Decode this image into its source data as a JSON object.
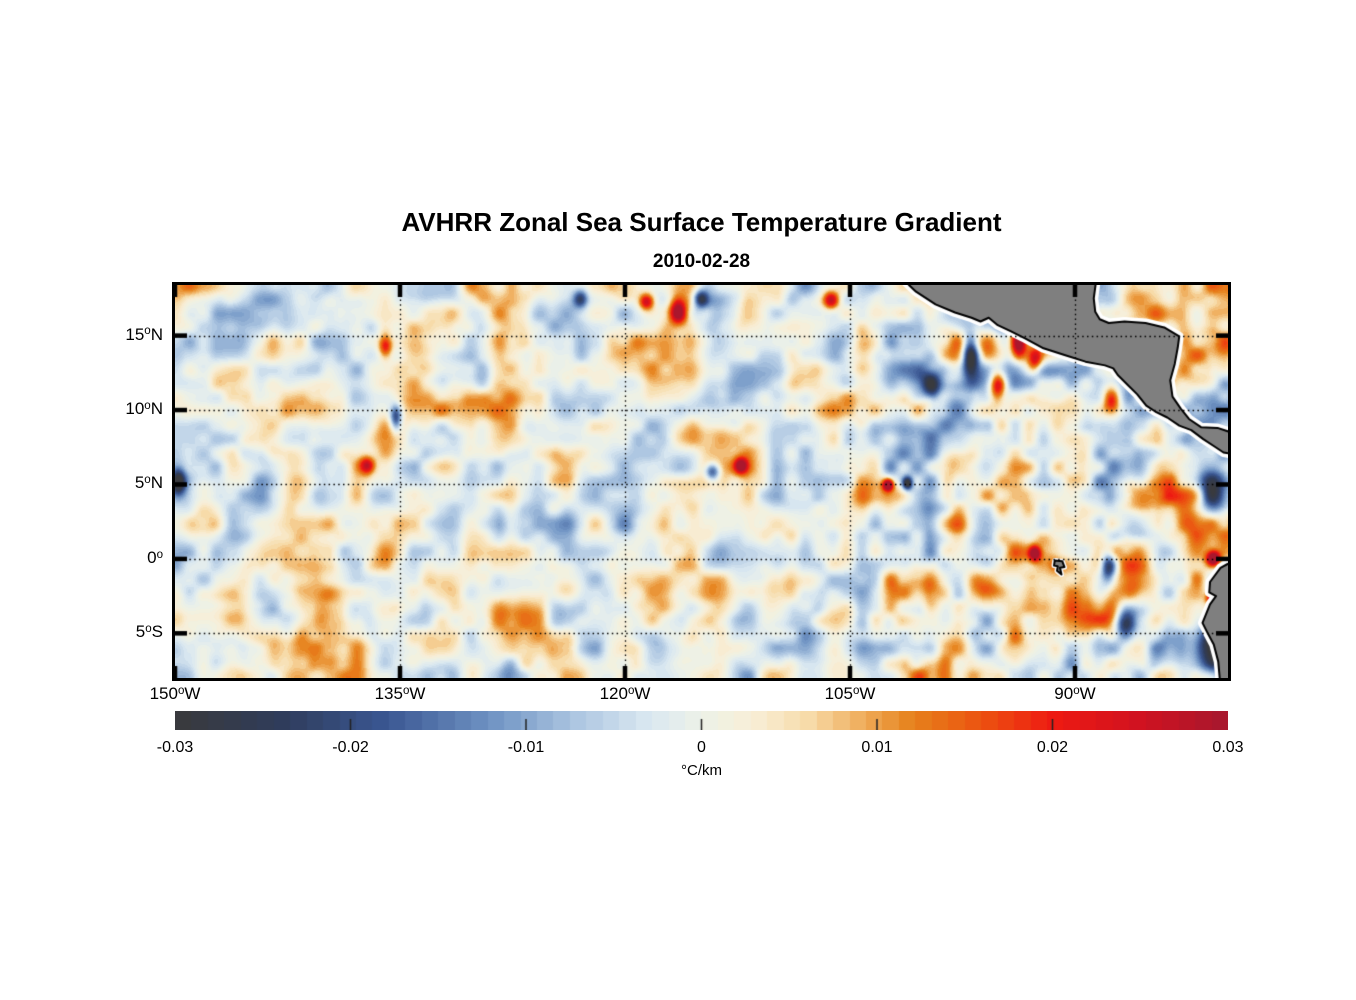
{
  "figure": {
    "title": "AVHRR Zonal Sea Surface Temperature Gradient",
    "subtitle": "2010-02-28"
  },
  "chart_data": {
    "type": "heatmap",
    "title": "AVHRR Zonal Sea Surface Temperature Gradient",
    "date": "2010-02-28",
    "variable": "zonal sea surface temperature gradient",
    "units": "°C/km",
    "extent": {
      "lon_min": -150.0,
      "lon_max": -79.8,
      "lat_min": -8.0,
      "lat_max": 18.4
    },
    "x_ticks": [
      {
        "text": "150",
        "sup": "o",
        "suffix": "W",
        "lon": -150
      },
      {
        "text": "135",
        "sup": "o",
        "suffix": "W",
        "lon": -135
      },
      {
        "text": "120",
        "sup": "o",
        "suffix": "W",
        "lon": -120
      },
      {
        "text": "105",
        "sup": "o",
        "suffix": "W",
        "lon": -105
      },
      {
        "text": "90",
        "sup": "o",
        "suffix": "W",
        "lon": -90
      }
    ],
    "y_ticks": [
      {
        "text": "15",
        "sup": "o",
        "suffix": "N",
        "lat": 15
      },
      {
        "text": "10",
        "sup": "o",
        "suffix": "N",
        "lat": 10
      },
      {
        "text": "5",
        "sup": "o",
        "suffix": "N",
        "lat": 5
      },
      {
        "text": "0",
        "sup": "o",
        "suffix": "",
        "lat": 0
      },
      {
        "text": "5",
        "sup": "o",
        "suffix": "S",
        "lat": -5
      }
    ],
    "grid": {
      "style": "dotted",
      "color": "#000000",
      "on": true
    },
    "colorbar": {
      "min": -0.03,
      "max": 0.03,
      "tick_values": [
        -0.03,
        -0.02,
        -0.01,
        0,
        0.01,
        0.02,
        0.03
      ],
      "tick_labels": [
        "-0.03",
        "-0.02",
        "-0.01",
        "0",
        "0.01",
        "0.02",
        "0.03"
      ],
      "label": "°C/km",
      "orientation": "horizontal",
      "levels": 64
    },
    "colormap_stops": [
      [
        -0.03,
        "#3a3a3c"
      ],
      [
        -0.024,
        "#2f3c5a"
      ],
      [
        -0.018,
        "#3a5692"
      ],
      [
        -0.012,
        "#6f93c3"
      ],
      [
        -0.007,
        "#aec7e2"
      ],
      [
        -0.003,
        "#dae8f1"
      ],
      [
        -0.0008,
        "#e8efeb"
      ],
      [
        0.0008,
        "#f0f2e3"
      ],
      [
        0.003,
        "#f8eed6"
      ],
      [
        0.006,
        "#f7dcab"
      ],
      [
        0.009,
        "#f0b060"
      ],
      [
        0.012,
        "#e6821c"
      ],
      [
        0.016,
        "#ec5210"
      ],
      [
        0.02,
        "#ee1a12"
      ],
      [
        0.025,
        "#d01220"
      ],
      [
        0.03,
        "#a6182e"
      ]
    ],
    "land_color": "#7f7f7f",
    "coast_outline_color": "#000000",
    "coast_halo_color": "#ffffff",
    "geography": {
      "mainland_central_america": [
        [
          -101.7,
          19.0
        ],
        [
          -100.6,
          17.95
        ],
        [
          -99.3,
          17.1
        ],
        [
          -98.0,
          16.55
        ],
        [
          -96.9,
          16.2
        ],
        [
          -96.3,
          15.95
        ],
        [
          -95.75,
          16.2
        ],
        [
          -95.15,
          15.7
        ],
        [
          -94.3,
          15.3
        ],
        [
          -93.3,
          14.8
        ],
        [
          -92.1,
          14.15
        ],
        [
          -90.7,
          13.7
        ],
        [
          -89.3,
          13.25
        ],
        [
          -88.0,
          13.0
        ],
        [
          -87.45,
          12.8
        ],
        [
          -87.15,
          12.35
        ],
        [
          -86.5,
          11.7
        ],
        [
          -85.85,
          11.05
        ],
        [
          -85.25,
          10.3
        ],
        [
          -84.65,
          9.9
        ],
        [
          -83.85,
          9.5
        ],
        [
          -83.05,
          8.95
        ],
        [
          -82.25,
          8.65
        ],
        [
          -81.45,
          8.05
        ],
        [
          -80.7,
          7.55
        ],
        [
          -80.1,
          7.15
        ],
        [
          -79.3,
          7.0
        ],
        [
          -79.3,
          8.4
        ],
        [
          -80.5,
          8.8
        ],
        [
          -81.6,
          8.85
        ],
        [
          -82.4,
          9.4
        ],
        [
          -82.95,
          10.1
        ],
        [
          -83.5,
          10.9
        ],
        [
          -83.65,
          12.0
        ],
        [
          -83.35,
          13.1
        ],
        [
          -83.15,
          14.2
        ],
        [
          -83.05,
          14.95
        ],
        [
          -84.05,
          15.55
        ],
        [
          -85.3,
          15.85
        ],
        [
          -86.7,
          15.95
        ],
        [
          -87.75,
          15.85
        ],
        [
          -88.35,
          16.1
        ],
        [
          -88.65,
          16.6
        ],
        [
          -88.75,
          17.5
        ],
        [
          -88.55,
          19.0
        ]
      ],
      "south_america": [
        [
          -79.3,
          -0.05
        ],
        [
          -80.3,
          -0.6
        ],
        [
          -81.0,
          -1.55
        ],
        [
          -81.05,
          -2.25
        ],
        [
          -80.6,
          -2.5
        ],
        [
          -81.0,
          -3.05
        ],
        [
          -81.5,
          -4.3
        ],
        [
          -81.15,
          -5.0
        ],
        [
          -80.75,
          -5.75
        ],
        [
          -80.45,
          -6.9
        ],
        [
          -80.3,
          -8.6
        ],
        [
          -79.3,
          -8.6
        ]
      ],
      "galapagos": [
        [
          -91.35,
          -0.1
        ],
        [
          -90.85,
          -0.15
        ],
        [
          -90.7,
          -0.55
        ],
        [
          -91.0,
          -0.6
        ],
        [
          -90.9,
          -1.05
        ],
        [
          -91.2,
          -0.8
        ],
        [
          -91.15,
          -0.5
        ],
        [
          -91.4,
          -0.45
        ]
      ]
    },
    "features_format": "[lon_deg, lat_deg, amplitude_C_per_km, radius_lon_deg, radius_lat_deg]",
    "notable_features": [
      [
        -93.8,
        14.6,
        0.042,
        0.55,
        1.2
      ],
      [
        -95.0,
        16.05,
        -0.032,
        0.4,
        0.4
      ],
      [
        -97.0,
        13.8,
        -0.036,
        0.55,
        1.5
      ],
      [
        -95.2,
        11.7,
        0.028,
        0.55,
        1.1
      ],
      [
        -99.6,
        11.6,
        -0.024,
        0.6,
        0.9
      ],
      [
        -92.7,
        13.4,
        0.022,
        0.5,
        0.8
      ],
      [
        -87.6,
        10.7,
        0.024,
        0.6,
        0.9
      ],
      [
        -81.0,
        4.6,
        -0.03,
        0.9,
        1.7
      ],
      [
        -80.8,
        0.05,
        0.036,
        0.45,
        0.5
      ],
      [
        -80.9,
        -2.55,
        0.032,
        0.4,
        0.45
      ],
      [
        -80.8,
        -5.9,
        -0.03,
        1.0,
        1.6
      ],
      [
        -86.7,
        -4.4,
        -0.026,
        0.7,
        1.1
      ],
      [
        -87.8,
        -0.5,
        -0.026,
        0.5,
        1.0
      ],
      [
        -92.7,
        0.4,
        0.028,
        0.4,
        0.5
      ],
      [
        -102.5,
        5.0,
        0.034,
        0.35,
        0.4
      ],
      [
        -101.2,
        5.1,
        -0.03,
        0.35,
        0.45
      ],
      [
        -116.5,
        16.6,
        0.03,
        0.55,
        0.85
      ],
      [
        -115.0,
        17.5,
        -0.026,
        0.5,
        0.6
      ],
      [
        -118.6,
        17.3,
        0.026,
        0.5,
        0.55
      ],
      [
        -112.3,
        6.3,
        0.026,
        0.45,
        0.55
      ],
      [
        -114.2,
        5.9,
        -0.026,
        0.5,
        0.6
      ],
      [
        -136.0,
        14.3,
        0.026,
        0.5,
        0.85
      ],
      [
        -137.2,
        6.3,
        0.024,
        0.5,
        0.6
      ],
      [
        -149.8,
        5.2,
        -0.032,
        0.5,
        0.8
      ],
      [
        -135.3,
        9.5,
        -0.024,
        0.4,
        0.9
      ],
      [
        -106.3,
        17.4,
        0.024,
        0.5,
        0.6
      ],
      [
        -123.0,
        17.5,
        -0.024,
        0.5,
        0.6
      ]
    ],
    "background_field": {
      "seed": 3,
      "bias": 0.0008,
      "octaves": [
        [
          78,
          0.0038
        ],
        [
          30,
          0.0095
        ],
        [
          14,
          0.0042
        ]
      ],
      "east_amp_boost": 0.45,
      "east_boost_start_lon": -112,
      "east_boost_span_deg": 12
    }
  }
}
